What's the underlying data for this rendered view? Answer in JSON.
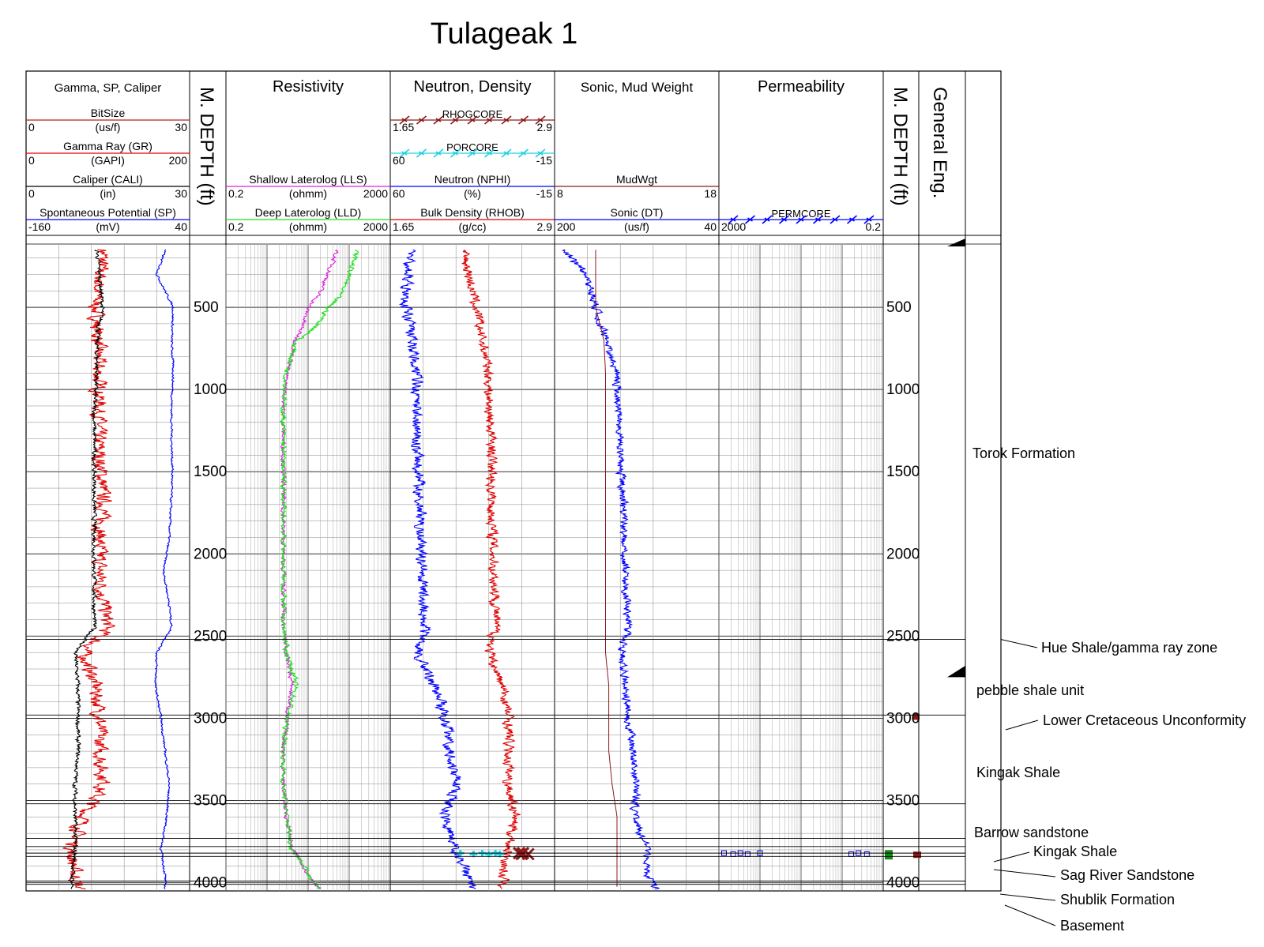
{
  "title": "Tulageak 1",
  "tracks": {
    "gamma": {
      "title": "Gamma, SP, Caliper",
      "curves": [
        {
          "name": "BitSize",
          "unit": "(us/f)",
          "min": "0",
          "max": "30",
          "color": "#b22222"
        },
        {
          "name": "Gamma Ray (GR)",
          "unit": "(GAPI)",
          "min": "0",
          "max": "200",
          "color": "#e00000"
        },
        {
          "name": "Caliper (CALI)",
          "unit": "(in)",
          "min": "0",
          "max": "30",
          "color": "#000000"
        },
        {
          "name": "Spontaneous Potential (SP)",
          "unit": "(mV)",
          "min": "-160",
          "max": "40",
          "color": "#0000ff"
        }
      ]
    },
    "depth_label": "M. DEPTH (ft)",
    "resistivity": {
      "title": "Resistivity",
      "curves": [
        {
          "name": "Shallow Laterolog (LLS)",
          "unit": "(ohmm)",
          "min": "0.2",
          "max": "2000",
          "color": "#e020e0"
        },
        {
          "name": "Deep Laterolog (LLD)",
          "unit": "(ohmm)",
          "min": "0.2",
          "max": "2000",
          "color": "#20e020"
        }
      ]
    },
    "neutron": {
      "title": "Neutron, Density",
      "curves": [
        {
          "name": "RHOGCORE",
          "unit": "",
          "min": "1.65",
          "max": "2.9",
          "color": "#8b1a1a"
        },
        {
          "name": "PORCORE",
          "unit": "",
          "min": "60",
          "max": "-15",
          "color": "#20d0e0"
        },
        {
          "name": "Neutron (NPHI)",
          "unit": "(%)",
          "min": "60",
          "max": "-15",
          "color": "#0000ff"
        },
        {
          "name": "Bulk Density (RHOB)",
          "unit": "(g/cc)",
          "min": "1.65",
          "max": "2.9",
          "color": "#e00000"
        }
      ]
    },
    "sonic": {
      "title": "Sonic, Mud Weight",
      "curves": [
        {
          "name": "MudWgt",
          "unit": "",
          "min": "8",
          "max": "18",
          "color": "#8b1a1a"
        },
        {
          "name": "Sonic (DT)",
          "unit": "(us/f)",
          "min": "200",
          "max": "40",
          "color": "#0000ff"
        }
      ]
    },
    "perm": {
      "title": "Permeability",
      "curves": [
        {
          "name": "PERMCORE",
          "unit": "",
          "min": "2000",
          "max": "0.2",
          "color": "#0000ff"
        }
      ]
    },
    "general": {
      "title": "General Eng."
    }
  },
  "depth_ticks": [
    "500",
    "1000",
    "1500",
    "2000",
    "2500",
    "3000",
    "3500",
    "4000"
  ],
  "formations": [
    {
      "name": "Torok Formation",
      "depth": 1350
    },
    {
      "name": "Hue Shale/gamma ray zone",
      "depth": 2500
    },
    {
      "name": "pebble shale unit",
      "depth": 2750
    },
    {
      "name": "Lower Cretaceous Unconformity",
      "depth": 2950
    },
    {
      "name": "Kingak Shale",
      "depth": 3250
    },
    {
      "name": "Barrow sandstone",
      "depth": 3600
    },
    {
      "name": "Kingak Shale",
      "depth": 3720
    },
    {
      "name": "Sag River Sandstone",
      "depth": 3800
    },
    {
      "name": "Shublik Formation",
      "depth": 3950
    },
    {
      "name": "Basement",
      "depth": 4040
    }
  ],
  "chart_data": {
    "type": "line",
    "title": "Tulageak 1",
    "ylabel": "M. DEPTH (ft)",
    "ylim": [
      4050,
      120
    ],
    "depth": [
      150,
      300,
      500,
      700,
      900,
      1100,
      1300,
      1500,
      1700,
      1900,
      2100,
      2300,
      2450,
      2600,
      2800,
      3000,
      3200,
      3400,
      3600,
      3800,
      3950,
      4050
    ],
    "series": [
      {
        "name": "Gamma Ray (GR)",
        "xlim": [
          0,
          200
        ],
        "values": [
          95,
          90,
          85,
          88,
          88,
          90,
          88,
          92,
          95,
          90,
          90,
          95,
          100,
          70,
          85,
          90,
          90,
          95,
          70,
          55,
          60,
          65
        ]
      },
      {
        "name": "Caliper (CALI)",
        "xlim": [
          0,
          30
        ],
        "values": [
          13,
          13.5,
          14,
          13,
          13,
          12.5,
          12.5,
          12.5,
          12.5,
          12.5,
          12.5,
          12.5,
          12.5,
          9,
          9.5,
          9.5,
          9.5,
          9,
          9,
          9,
          8.5,
          8.5
        ]
      },
      {
        "name": "Spontaneous Potential (SP)",
        "xlim": [
          -160,
          40
        ],
        "values": [
          10,
          0,
          20,
          18,
          20,
          18,
          18,
          19,
          17,
          15,
          8,
          15,
          18,
          0,
          -2,
          5,
          10,
          15,
          12,
          5,
          10,
          10
        ]
      },
      {
        "name": "Shallow Laterolog (LLS)",
        "xlim": [
          0.2,
          2000
        ],
        "log": true,
        "values": [
          100,
          60,
          20,
          10,
          6,
          5,
          5,
          5,
          5,
          5,
          5,
          5,
          5,
          6,
          8,
          6,
          5,
          5,
          6,
          8,
          20,
          40
        ]
      },
      {
        "name": "Deep Laterolog (LLD)",
        "xlim": [
          0.2,
          2000
        ],
        "log": true,
        "values": [
          300,
          200,
          60,
          10,
          6,
          5,
          5,
          5,
          5,
          5,
          5,
          5,
          5,
          6,
          10,
          6,
          5,
          5,
          6,
          8,
          20,
          40
        ]
      },
      {
        "name": "Neutron (NPHI)",
        "xlim": [
          60,
          -15
        ],
        "values": [
          50,
          52,
          53,
          50,
          48,
          48,
          48,
          47,
          46,
          46,
          45,
          45,
          44,
          48,
          40,
          35,
          33,
          30,
          35,
          30,
          25,
          22
        ]
      },
      {
        "name": "Bulk Density (RHOB)",
        "xlim": [
          1.65,
          2.9
        ],
        "values": [
          2.2,
          2.25,
          2.3,
          2.35,
          2.4,
          2.4,
          2.42,
          2.42,
          2.42,
          2.43,
          2.44,
          2.45,
          2.45,
          2.4,
          2.5,
          2.55,
          2.55,
          2.55,
          2.6,
          2.55,
          2.5,
          2.52
        ]
      },
      {
        "name": "Sonic (DT)",
        "xlim": [
          200,
          40
        ],
        "values": [
          190,
          170,
          160,
          150,
          140,
          138,
          137,
          135,
          133,
          132,
          132,
          130,
          128,
          135,
          130,
          128,
          124,
          120,
          122,
          110,
          110,
          100
        ]
      },
      {
        "name": "MudWgt",
        "xlim": [
          8,
          18
        ],
        "values": [
          10.5,
          10.5,
          10.5,
          11,
          11.1,
          11.1,
          11.1,
          11.1,
          11.1,
          11.1,
          11.1,
          11.1,
          11.1,
          11.1,
          11.3,
          11.3,
          11.3,
          11.5,
          11.8,
          11.8,
          11.8,
          11.8
        ]
      }
    ],
    "core_points": [
      {
        "name": "RHOGCORE",
        "depth": 3820,
        "values": [
          2.63,
          2.65,
          2.66,
          2.7
        ]
      },
      {
        "name": "PORCORE",
        "depth": 3820,
        "values": [
          28,
          22,
          18,
          15,
          12,
          10
        ]
      },
      {
        "name": "PERMCORE",
        "depth": 3820,
        "values": [
          1500,
          900,
          600,
          400,
          200,
          1.2,
          0.8,
          0.5
        ]
      }
    ],
    "grid": true,
    "legend": "top"
  }
}
